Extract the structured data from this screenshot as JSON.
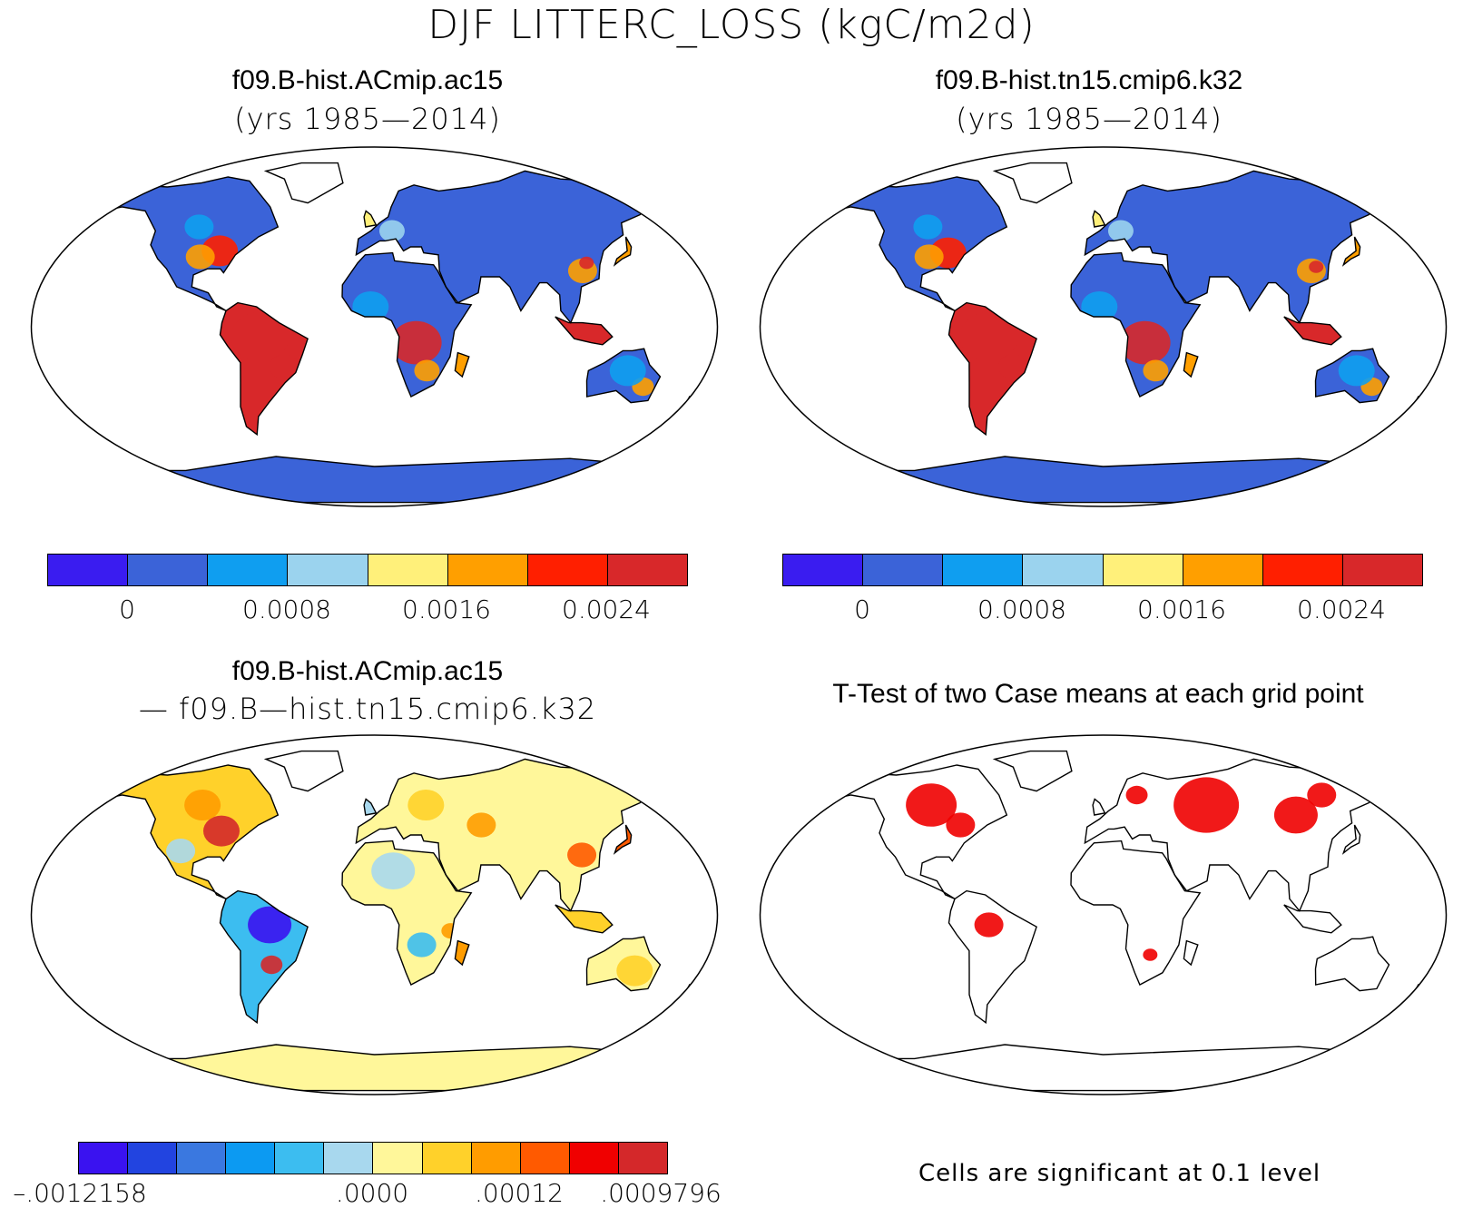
{
  "title": "DJF LITTERC_LOSS (kgC/m2d)",
  "panels": {
    "p1": {
      "title": "f09.B-hist.ACmip.ac15",
      "subtitle": "(yrs 1985—2014)"
    },
    "p2": {
      "title": "f09.B-hist.tn15.cmip6.k32",
      "subtitle": "(yrs 1985—2014)"
    },
    "p3": {
      "title": "f09.B-hist.ACmip.ac15",
      "subtitle": "— f09.B—hist.tn15.cmip6.k32"
    },
    "p4": {
      "title": "T-Test of two Case means at each grid point",
      "note": "Cells are significant at 0.1 level"
    }
  },
  "colorbars": {
    "abs": {
      "colors": [
        "#3a1cf0",
        "#3b63d8",
        "#0f9ef0",
        "#9bd3ee",
        "#fff07a",
        "#ff9f00",
        "#ff1f00",
        "#d8282a"
      ],
      "labels": [
        "0",
        "0.0008",
        "0.0016",
        "0.0024"
      ]
    },
    "diff": {
      "colors": [
        "#3a12f0",
        "#2244e0",
        "#3a78e0",
        "#0c9af2",
        "#3cbdf0",
        "#a8d8ee",
        "#fff79a",
        "#ffd12a",
        "#ff9c00",
        "#ff5a00",
        "#f00000",
        "#d4282a"
      ],
      "labels": [
        "–.0012158",
        ".0000",
        ".00012",
        ".0009796"
      ]
    }
  },
  "chart_data": [
    {
      "type": "map",
      "title": "f09.B-hist.ACmip.ac15",
      "period": "(yrs 1985—2014)",
      "variable": "DJF LITTERC_LOSS (kgC/m2d)",
      "colorbar_ticks": [
        0,
        0.0008,
        0.0016,
        0.0024
      ]
    },
    {
      "type": "map",
      "title": "f09.B-hist.tn15.cmip6.k32",
      "period": "(yrs 1985—2014)",
      "variable": "DJF LITTERC_LOSS (kgC/m2d)",
      "colorbar_ticks": [
        0,
        0.0008,
        0.0016,
        0.0024
      ]
    },
    {
      "type": "map",
      "title": "f09.B-hist.ACmip.ac15 — f09.B—hist.tn15.cmip6.k32",
      "colorbar_ticks": [
        -0.0012158,
        0.0,
        0.00012,
        0.0009796
      ]
    },
    {
      "type": "map",
      "title": "T-Test of two Case means at each grid point",
      "note": "Cells are significant at 0.1 level"
    }
  ]
}
